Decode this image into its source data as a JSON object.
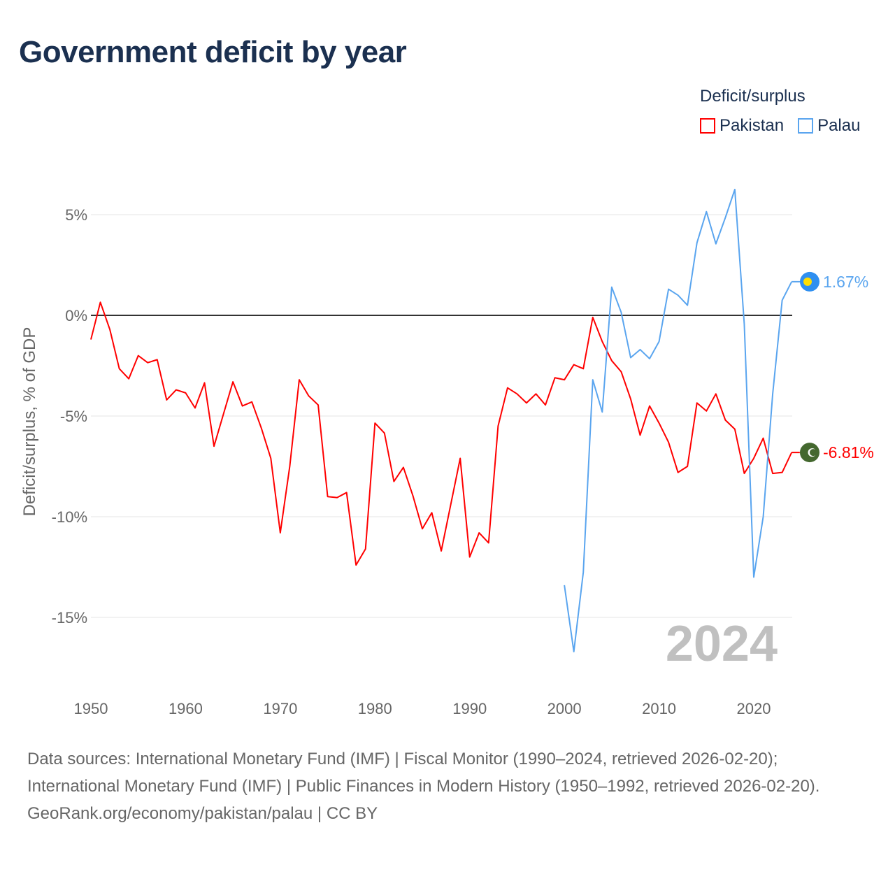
{
  "title": "Government deficit by year",
  "legend": {
    "title": "Deficit/surplus",
    "items": [
      {
        "label": "Pakistan",
        "color": "#ff0000"
      },
      {
        "label": "Palau",
        "color": "#5aa5ef"
      }
    ]
  },
  "year_watermark": "2024",
  "footer": {
    "sources": "Data sources: International Monetary Fund (IMF) | Fiscal Monitor (1990–2024, retrieved 2026-02-20); International Monetary Fund (IMF) | Public Finances in Modern History (1950–1992, retrieved 2026-02-20).",
    "credit": "GeoRank.org/economy/pakistan/palau | CC BY"
  },
  "chart_data": {
    "type": "line",
    "title": "Government deficit by year",
    "xlabel": "",
    "ylabel": "Deficit/surplus, % of GDP",
    "xlim": [
      1950,
      2024
    ],
    "ylim": [
      -17.5,
      6.5
    ],
    "x_ticks": [
      1950,
      1960,
      1970,
      1980,
      1990,
      2000,
      2010,
      2020
    ],
    "x_tick_labels": [
      "1950",
      "1960",
      "1970",
      "1980",
      "1990",
      "2000",
      "2010",
      "2020"
    ],
    "y_ticks": [
      5,
      0,
      -5,
      -10,
      -15
    ],
    "y_tick_labels": [
      "5%",
      "0%",
      "-5%",
      "-10%",
      "-15%"
    ],
    "grid": true,
    "legend_position": "top-right",
    "series": [
      {
        "name": "Pakistan",
        "color": "#ff0000",
        "end_label": "-6.81%",
        "start_year": 1950,
        "values": [
          -1.2,
          0.65,
          -0.7,
          -2.65,
          -3.15,
          -2.0,
          -2.35,
          -2.2,
          -4.2,
          -3.7,
          -3.85,
          -4.6,
          -3.35,
          -6.5,
          -4.9,
          -3.3,
          -4.5,
          -4.3,
          -5.6,
          -7.1,
          -10.8,
          -7.5,
          -3.2,
          -4.0,
          -4.45,
          -9.0,
          -9.05,
          -8.8,
          -12.4,
          -11.6,
          -5.35,
          -5.85,
          -8.25,
          -7.55,
          -8.95,
          -10.6,
          -9.8,
          -11.7,
          -9.4,
          -7.1,
          -12.0,
          -10.8,
          -11.3,
          -5.5,
          -3.6,
          -3.9,
          -4.35,
          -3.9,
          -4.45,
          -3.1,
          -3.2,
          -2.45,
          -2.65,
          -0.1,
          -1.3,
          -2.25,
          -2.8,
          -4.15,
          -5.95,
          -4.5,
          -5.35,
          -6.3,
          -7.8,
          -7.5,
          -4.35,
          -4.75,
          -3.9,
          -5.2,
          -5.65,
          -7.85,
          -7.1,
          -6.1,
          -7.85,
          -7.8,
          -6.81
        ]
      },
      {
        "name": "Palau",
        "color": "#5aa5ef",
        "end_label": "1.67%",
        "start_year": 2000,
        "values": [
          -13.4,
          -16.7,
          -12.75,
          -3.2,
          -4.8,
          1.4,
          0.15,
          -2.1,
          -1.7,
          -2.15,
          -1.3,
          1.3,
          1.0,
          0.5,
          3.6,
          5.15,
          3.55,
          4.85,
          6.25,
          -0.45,
          -13.0,
          -10.0,
          -3.9,
          0.75,
          1.67
        ]
      }
    ]
  }
}
